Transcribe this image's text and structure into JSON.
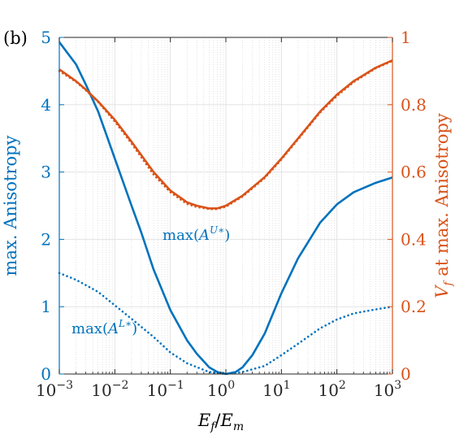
{
  "chart_data": {
    "type": "line",
    "panel_label": "(b)",
    "xlabel": {
      "main": "E",
      "sub1": "f",
      "slash": "/",
      "main2": "E",
      "sub2": "m"
    },
    "xscale": "log",
    "xlim": [
      0.001,
      1000
    ],
    "x_ticks": [
      {
        "base": "10",
        "exp": "−3",
        "value": 0.001
      },
      {
        "base": "10",
        "exp": "−2",
        "value": 0.01
      },
      {
        "base": "10",
        "exp": "−1",
        "value": 0.1
      },
      {
        "base": "10",
        "exp": "0",
        "value": 1
      },
      {
        "base": "10",
        "exp": "1",
        "value": 10
      },
      {
        "base": "10",
        "exp": "2",
        "value": 100
      },
      {
        "base": "10",
        "exp": "3",
        "value": 1000
      }
    ],
    "y_left": {
      "label": "max. Anisotropy",
      "lim": [
        0,
        5
      ],
      "ticks": [
        "0",
        "1",
        "2",
        "3",
        "4",
        "5"
      ],
      "color": "#0072BD"
    },
    "y_right": {
      "label_main": "V",
      "label_sub": "f",
      "label_rest": " at max. Anisotropy",
      "lim": [
        0,
        1
      ],
      "ticks": [
        "0",
        "0.2",
        "0.4",
        "0.6",
        "0.8",
        "1"
      ],
      "color": "#D95319"
    },
    "grid": true,
    "annotations": {
      "upper": {
        "prefix": "max(",
        "sym": "A",
        "sup": "U∗",
        "suffix": ")"
      },
      "lower": {
        "prefix": "max(",
        "sym": "A",
        "sup": "L∗",
        "suffix": ")"
      }
    },
    "series": [
      {
        "axis": "left",
        "style": "solid",
        "color": "#0072BD",
        "x": [
          0.001,
          0.002,
          0.003,
          0.005,
          0.01,
          0.02,
          0.03,
          0.05,
          0.1,
          0.2,
          0.3,
          0.5,
          0.7,
          1,
          1.5,
          2,
          3,
          5,
          10,
          20,
          50,
          100,
          200,
          500,
          1000
        ],
        "y": [
          4.93,
          4.6,
          4.3,
          3.9,
          3.2,
          2.5,
          2.1,
          1.55,
          0.95,
          0.5,
          0.3,
          0.1,
          0.03,
          0.0,
          0.03,
          0.1,
          0.28,
          0.6,
          1.2,
          1.72,
          2.25,
          2.52,
          2.7,
          2.84,
          2.92
        ]
      },
      {
        "axis": "left",
        "style": "dotted",
        "color": "#0072BD",
        "x": [
          0.001,
          0.002,
          0.005,
          0.01,
          0.02,
          0.05,
          0.1,
          0.2,
          0.5,
          1,
          2,
          5,
          10,
          20,
          50,
          100,
          200,
          500,
          1000
        ],
        "y": [
          1.5,
          1.4,
          1.22,
          1.02,
          0.82,
          0.55,
          0.32,
          0.16,
          0.03,
          0.0,
          0.03,
          0.12,
          0.28,
          0.45,
          0.68,
          0.81,
          0.9,
          0.96,
          1.0
        ]
      },
      {
        "axis": "right",
        "style": "solid",
        "color": "#D95319",
        "x": [
          0.001,
          0.002,
          0.003,
          0.005,
          0.01,
          0.02,
          0.05,
          0.1,
          0.2,
          0.3,
          0.5,
          0.7,
          1,
          2,
          5,
          10,
          20,
          50,
          100,
          200,
          500,
          1000
        ],
        "y": [
          0.905,
          0.87,
          0.845,
          0.81,
          0.755,
          0.69,
          0.6,
          0.545,
          0.51,
          0.5,
          0.492,
          0.492,
          0.5,
          0.53,
          0.585,
          0.64,
          0.7,
          0.78,
          0.83,
          0.87,
          0.91,
          0.932
        ]
      },
      {
        "axis": "right",
        "style": "dotted",
        "color": "#D95319",
        "x": [
          0.001,
          0.002,
          0.003,
          0.005,
          0.01,
          0.02,
          0.05,
          0.1,
          0.2,
          0.3,
          0.5,
          0.7,
          1,
          2,
          5,
          10,
          20,
          50,
          100,
          200,
          500,
          1000
        ],
        "y": [
          0.9,
          0.868,
          0.843,
          0.808,
          0.75,
          0.685,
          0.592,
          0.54,
          0.505,
          0.496,
          0.49,
          0.49,
          0.497,
          0.527,
          0.582,
          0.637,
          0.697,
          0.777,
          0.826,
          0.867,
          0.908,
          0.93
        ]
      }
    ]
  }
}
